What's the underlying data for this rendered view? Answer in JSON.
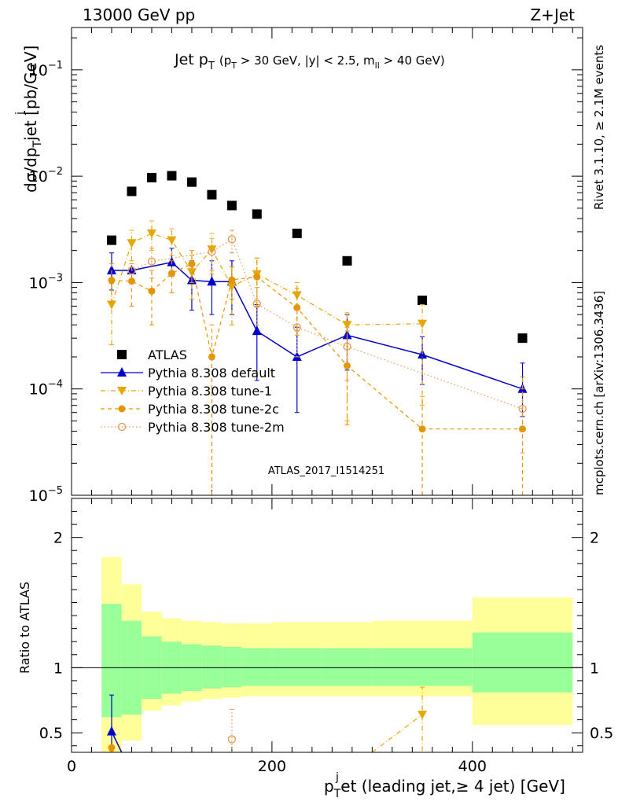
{
  "header": {
    "left": "13000 GeV pp",
    "right": "Z+Jet"
  },
  "side_labels": {
    "rivet": "Rivet 3.1.10, ≥ 2.1M events",
    "mcplots": "mcplots.cern.ch [arXiv:1306.3436]"
  },
  "chart_data": [
    {
      "type": "scatter",
      "title": {
        "main": "Jet p",
        "main_sub": "T",
        "cuts": "(p",
        "cuts_sub1": "T",
        "cuts_mid": "> 30 GeV, |y| < 2.5, m",
        "cuts_sub2": "ll",
        "cuts_end": "> 40 GeV)"
      },
      "ylabel": "dσ/dp",
      "ylabel_sub": "T",
      "ylabel_mid": "jet [pb/GeV]",
      "ylabel_sup": "j",
      "yscale": "log",
      "ylim": [
        1e-05,
        0.25
      ],
      "xlim": [
        0,
        510
      ],
      "y_ticks": [
        {
          "value": 0.1,
          "base": "10",
          "exp": "−1"
        },
        {
          "value": 0.01,
          "base": "10",
          "exp": "−2"
        },
        {
          "value": 0.001,
          "base": "10",
          "exp": "−3"
        },
        {
          "value": 0.0001,
          "base": "10",
          "exp": "−4"
        },
        {
          "value": 1e-05,
          "base": "10",
          "exp": "−5"
        }
      ],
      "watermark": "ATLAS_2017_I1514251",
      "legend": {
        "position": "lower-left",
        "entries": [
          "ATLAS",
          "Pythia 8.308 default",
          "Pythia 8.308 tune-1",
          "Pythia 8.308 tune-2c",
          "Pythia 8.308 tune-2m"
        ]
      },
      "bins": [
        30,
        50,
        70,
        90,
        110,
        130,
        150,
        170,
        200,
        250,
        300,
        400,
        500
      ],
      "x": [
        40,
        60,
        80,
        100,
        120,
        140,
        160,
        185,
        225,
        275,
        350,
        450
      ],
      "series": [
        {
          "name": "ATLAS",
          "color": "#000000",
          "marker": "square",
          "values": [
            0.0025,
            0.0072,
            0.0097,
            0.0101,
            0.0088,
            0.0067,
            0.0053,
            0.0044,
            0.0029,
            0.0016,
            0.00068,
            0.0003
          ]
        },
        {
          "name": "Pythia 8.308 default",
          "color": "#0000cc",
          "marker": "triangle-up",
          "line": "solid",
          "values": [
            0.0013,
            0.0013,
            null,
            0.00155,
            0.00105,
            0.00102,
            0.00102,
            0.00035,
            0.0002,
            0.00032,
            0.00021,
            0.0001
          ],
          "err_lo": [
            0.00085,
            null,
            null,
            0.00115,
            0.00055,
            0.0005,
            0.0005,
            0.00012,
            6e-05,
            0.00015,
            0.00011,
            5.5e-05
          ],
          "err_hi": [
            0.0019,
            null,
            null,
            0.0021,
            0.0016,
            0.0016,
            0.0016,
            0.00062,
            0.00038,
            0.0005,
            0.00031,
            0.000175
          ]
        },
        {
          "name": "Pythia 8.308 tune-1",
          "color": "#e6a800",
          "marker": "triangle-down",
          "line": "dashdot",
          "values": [
            0.00062,
            0.00235,
            0.0029,
            0.0025,
            0.00125,
            0.00205,
            0.00092,
            0.0012,
            0.00076,
            0.0004,
            0.00041,
            null
          ],
          "err_lo": [
            0.00026,
            0.0016,
            0.002,
            0.0018,
            0.0007,
            0.0012,
            0.0004,
            0.0006,
            0.00035,
            5e-05,
            7e-05,
            null
          ],
          "err_hi": [
            0.00098,
            0.0031,
            0.0038,
            0.0032,
            0.0018,
            0.0029,
            0.0014,
            0.0017,
            0.001,
            0.00052,
            0.00062,
            null
          ]
        },
        {
          "name": "Pythia 8.308 tune-2c",
          "color": "#e69500",
          "marker": "circle",
          "line": "dashed",
          "values": [
            0.00105,
            0.00103,
            0.00083,
            0.00122,
            0.0015,
            0.0002,
            0.00106,
            0.00113,
            0.00058,
            0.000165,
            4.2e-05,
            4.2e-05
          ],
          "err_lo": [
            0.00065,
            0.0006,
            0.0004,
            0.0008,
            0.001,
            1e-05,
            0.0007,
            0.0006,
            0.00032,
            4.6e-05,
            1e-05,
            1e-05
          ],
          "err_hi": [
            0.0015,
            0.0015,
            0.0013,
            0.0016,
            0.002,
            0.0004,
            0.0014,
            0.0017,
            0.00088,
            0.00035,
            8.5e-05,
            0.00013
          ]
        },
        {
          "name": "Pythia 8.308 tune-2m",
          "color": "#e69a50",
          "marker": "circle-open",
          "line": "dotted",
          "values": [
            null,
            0.0013,
            0.00158,
            null,
            null,
            0.00195,
            0.00255,
            0.00063,
            0.00038,
            0.00025,
            null,
            6.5e-05
          ],
          "err_lo": [
            null,
            null,
            0.0011,
            null,
            null,
            0.0013,
            0.0019,
            0.0004,
            0.0002,
            0.00012,
            null,
            2.5e-05
          ],
          "err_hi": [
            null,
            null,
            0.0021,
            null,
            null,
            0.0026,
            0.0031,
            0.0009,
            0.00055,
            0.00038,
            null,
            0.0001
          ]
        }
      ]
    },
    {
      "type": "scatter",
      "ylabel": "Ratio to ATLAS",
      "xlabel": "p",
      "xlabel_sub": "T",
      "xlabel_sup": "j",
      "xlabel_rest": "et (leading jet,≥ 4 jet) [GeV]",
      "ylim": [
        0.35,
        2.3
      ],
      "xlim": [
        0,
        510
      ],
      "y_ticks": [
        {
          "value": 2,
          "label": "2"
        },
        {
          "value": 1,
          "label": "1"
        },
        {
          "value": 0.5,
          "label": "0.5"
        }
      ],
      "x_ticks": [
        {
          "value": 0,
          "label": "0"
        },
        {
          "value": 200,
          "label": "200"
        },
        {
          "value": 400,
          "label": "400"
        }
      ],
      "reference_line": 1,
      "bands": {
        "bins": [
          30,
          50,
          70,
          90,
          110,
          130,
          150,
          170,
          200,
          250,
          300,
          400,
          500
        ],
        "inner_color": "#99ff99",
        "outer_color": "#ffff99",
        "inner_lo": [
          0.62,
          0.64,
          0.76,
          0.8,
          0.82,
          0.84,
          0.85,
          0.86,
          0.86,
          0.86,
          0.86,
          0.81
        ],
        "inner_hi": [
          1.49,
          1.36,
          1.24,
          1.2,
          1.18,
          1.17,
          1.16,
          1.15,
          1.15,
          1.15,
          1.15,
          1.27
        ],
        "outer_lo": [
          0.3,
          0.44,
          0.67,
          0.71,
          0.74,
          0.76,
          0.77,
          0.78,
          0.78,
          0.78,
          0.78,
          0.56
        ],
        "outer_hi": [
          1.85,
          1.64,
          1.43,
          1.38,
          1.36,
          1.35,
          1.34,
          1.34,
          1.35,
          1.35,
          1.36,
          1.54
        ]
      },
      "x": [
        40,
        350,
        160
      ],
      "series": [
        {
          "name": "Pythia 8.308 default",
          "color": "#0000cc",
          "points": [
            {
              "x": 40,
              "y": 0.51,
              "lo": 0.35,
              "hi": 0.79
            }
          ]
        },
        {
          "name": "Pythia 8.308 tune-1",
          "color": "#e6a800",
          "points": [
            {
              "x": 350,
              "y": 0.64,
              "lo": 0.36,
              "hi": 0.85
            }
          ],
          "line_from": {
            "x": 300,
            "y": 0.35
          }
        },
        {
          "name": "Pythia 8.308 tune-2c",
          "color": "#e69500",
          "points": [
            {
              "x": 40,
              "y": 0.36,
              "lo": 0.35,
              "hi": 0.36
            }
          ]
        },
        {
          "name": "Pythia 8.308 tune-2m",
          "color": "#e69a50",
          "points": [
            {
              "x": 160,
              "y": 0.45,
              "lo": 0.35,
              "hi": 0.68
            }
          ]
        }
      ]
    }
  ]
}
